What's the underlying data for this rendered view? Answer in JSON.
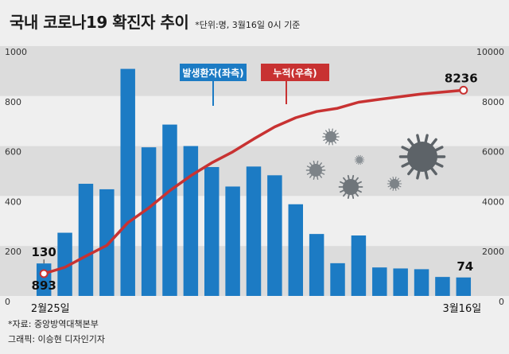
{
  "title": "국내 코로나19 확진자 추이",
  "unit_note": "*단위:명, 3월16일 0시 기준",
  "footer": {
    "source": "*자료: 중앙방역대책본부",
    "graphic": "그래픽: 이승현 디자인기자"
  },
  "chart_data": {
    "type": "bar",
    "x_start_label": "2월25일",
    "x_end_label": "3월16일",
    "y_left_ticks": [
      "1000",
      "800",
      "600",
      "400",
      "200",
      "0"
    ],
    "y_right_ticks": [
      "10000",
      "8000",
      "6000",
      "4000",
      "2000",
      "0"
    ],
    "ylim_left": [
      0,
      1000
    ],
    "ylim_right": [
      0,
      10000
    ],
    "series": [
      {
        "name": "발생환자(좌측)",
        "type": "bar",
        "axis": "left",
        "color": "#1c7bc4",
        "values": [
          130,
          253,
          449,
          427,
          909,
          595,
          686,
          600,
          516,
          438,
          518,
          483,
          367,
          248,
          131,
          242,
          114,
          110,
          107,
          76,
          74
        ]
      },
      {
        "name": "누적(우측)",
        "type": "line",
        "axis": "right",
        "color": "#c83232",
        "values": [
          893,
          1146,
          1595,
          2022,
          2931,
          3526,
          4212,
          4812,
          5328,
          5766,
          6284,
          6767,
          7134,
          7382,
          7513,
          7755,
          7869,
          7979,
          8086,
          8162,
          8236
        ]
      }
    ],
    "labels": {
      "first_bar": "130",
      "first_line": "893",
      "last_bar": "74",
      "last_line": "8236"
    }
  }
}
